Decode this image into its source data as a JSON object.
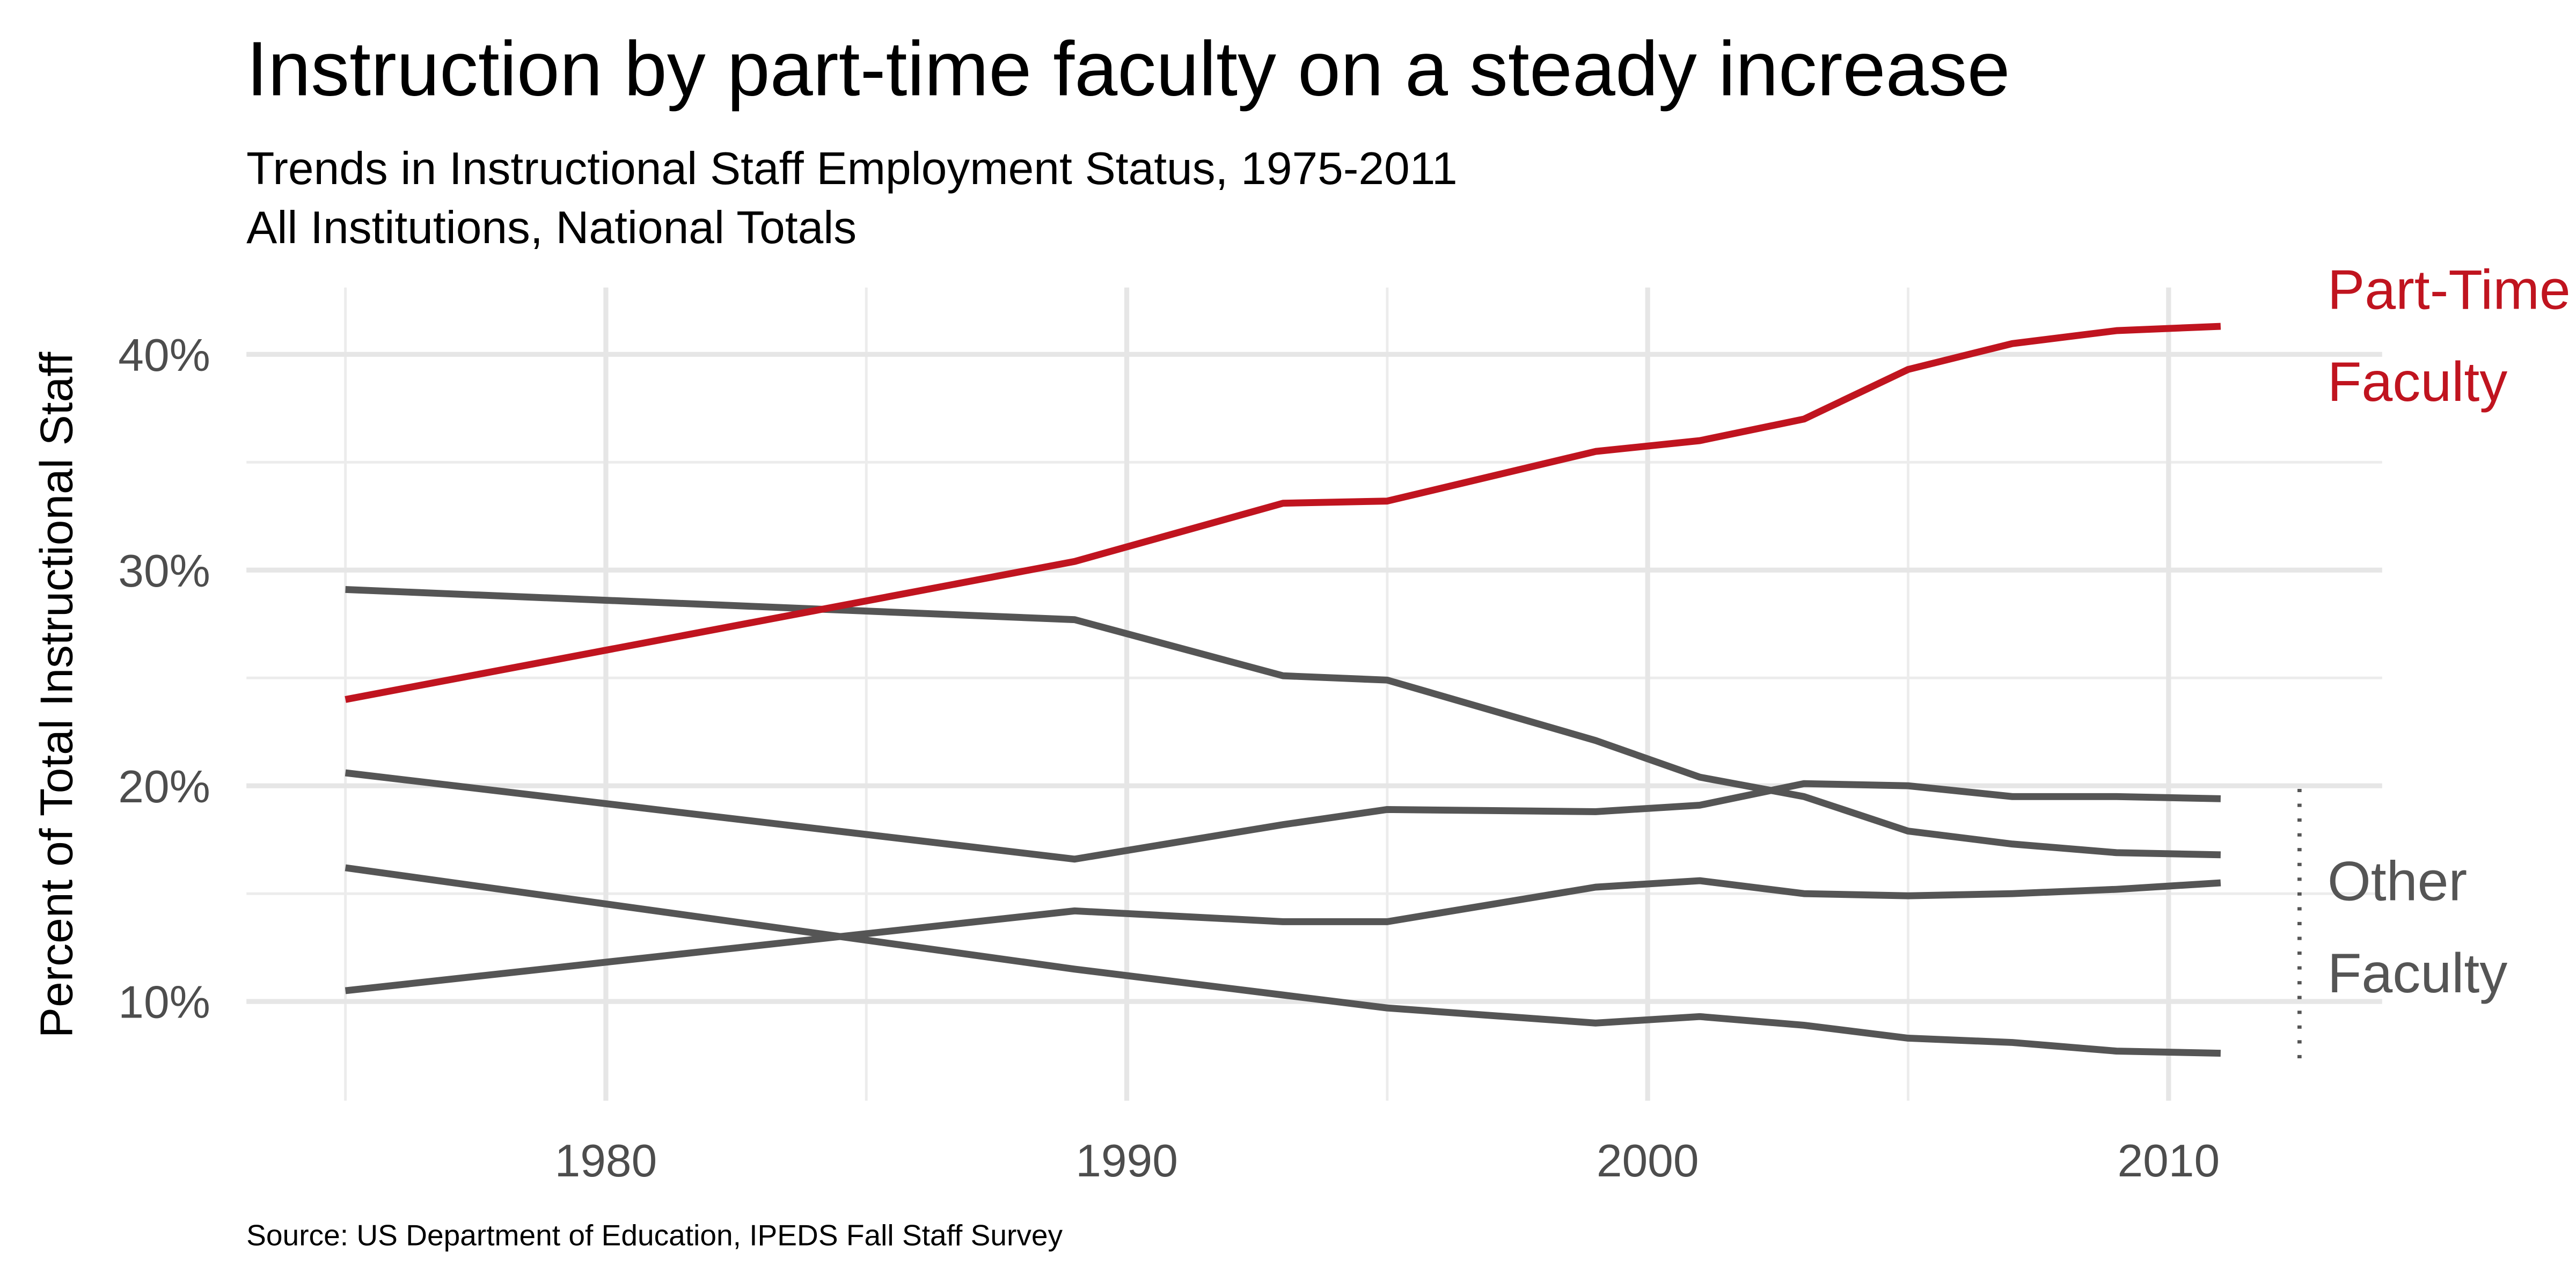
{
  "chart_data": {
    "type": "line",
    "title": "Instruction by part-time faculty on a steady increase",
    "subtitle": [
      "Trends in Instructional Staff Employment Status, 1975-2011",
      "All Institutions, National Totals"
    ],
    "y_label": "Percent of Total Instructional Staff",
    "source": "Source: US Department of Education, IPEDS Fall Staff Survey",
    "x": [
      1975,
      1989,
      1993,
      1995,
      1999,
      2001,
      2003,
      2005,
      2007,
      2009,
      2011
    ],
    "series": [
      {
        "color": "#c0141f",
        "values": [
          24.0,
          30.4,
          33.1,
          33.2,
          35.5,
          36.0,
          37.0,
          39.3,
          40.5,
          41.1,
          41.3
        ]
      },
      {
        "color": "#555555",
        "values": [
          29.1,
          27.7,
          25.1,
          24.9,
          22.1,
          20.4,
          19.5,
          17.9,
          17.3,
          16.9,
          16.8
        ]
      },
      {
        "color": "#555555",
        "values": [
          20.6,
          16.6,
          18.2,
          18.9,
          18.8,
          19.1,
          20.1,
          20.0,
          19.5,
          19.5,
          19.4
        ]
      },
      {
        "color": "#555555",
        "values": [
          16.2,
          11.5,
          10.3,
          9.7,
          9.0,
          9.3,
          8.9,
          8.3,
          8.1,
          7.7,
          7.6
        ]
      },
      {
        "color": "#555555",
        "values": [
          10.5,
          14.2,
          13.7,
          13.7,
          15.3,
          15.6,
          15.0,
          14.9,
          15.0,
          15.2,
          15.5
        ]
      }
    ],
    "annotations": [
      {
        "lines": [
          "Part-Time",
          "Faculty"
        ],
        "color": "#c0141f"
      },
      {
        "lines": [
          "Other",
          "Faculty"
        ],
        "color": "#555555"
      }
    ],
    "xlim": [
      1973.1,
      2014.1
    ],
    "xticks": [
      1980,
      1990,
      2000,
      2010
    ],
    "xminor": [
      1975,
      1985,
      1995,
      2005
    ],
    "ylim": [
      5.4,
      43.1
    ],
    "yticks": [
      {
        "value": 10,
        "label": "10%"
      },
      {
        "value": 20,
        "label": "20%"
      },
      {
        "value": 30,
        "label": "30%"
      },
      {
        "value": 40,
        "label": "40%"
      }
    ],
    "yminor": [
      15,
      25,
      35
    ],
    "grid": true
  }
}
